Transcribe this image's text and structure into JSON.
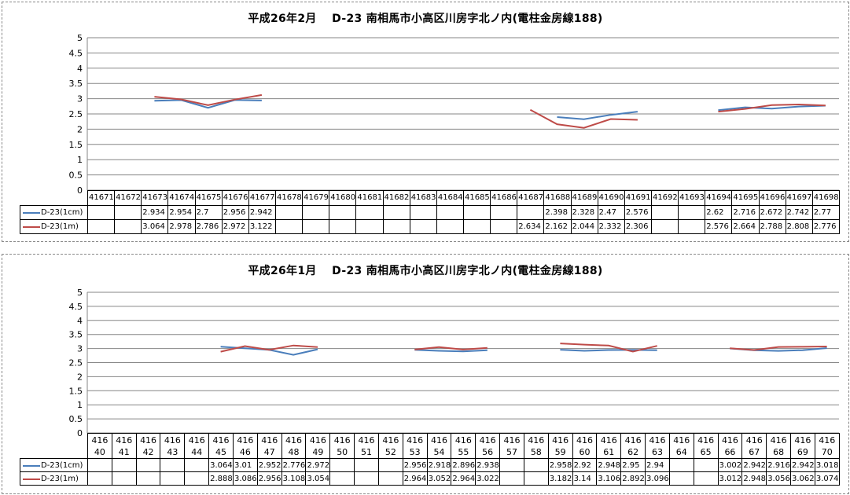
{
  "chart_data": [
    {
      "type": "line",
      "title": "平成26年2月　 D-23 南相馬市小高区川房字北ノ内(電柱金房線188)",
      "categories": [
        "41671",
        "41672",
        "41673",
        "41674",
        "41675",
        "41676",
        "41677",
        "41678",
        "41679",
        "41680",
        "41681",
        "41682",
        "41683",
        "41684",
        "41685",
        "41686",
        "41687",
        "41688",
        "41689",
        "41690",
        "41691",
        "41692",
        "41693",
        "41694",
        "41695",
        "41696",
        "41697",
        "41698"
      ],
      "ylim": [
        0,
        5
      ],
      "yticks": [
        "0",
        "0.5",
        "1",
        "1.5",
        "2",
        "2.5",
        "3",
        "3.5",
        "4",
        "4.5",
        "5"
      ],
      "grid": true,
      "legend": "data-table",
      "series": [
        {
          "name": "D-23(1cm)",
          "color": "#4a7ebb",
          "values": [
            null,
            null,
            2.934,
            2.954,
            2.7,
            2.956,
            2.942,
            null,
            null,
            null,
            null,
            null,
            null,
            null,
            null,
            null,
            null,
            2.398,
            2.328,
            2.47,
            2.576,
            null,
            null,
            2.62,
            2.716,
            2.672,
            2.742,
            2.77
          ],
          "labels": [
            "",
            "",
            "2.934",
            "2.954",
            "2.7",
            "2.956",
            "2.942",
            "",
            "",
            "",
            "",
            "",
            "",
            "",
            "",
            "",
            "",
            "2.398",
            "2.328",
            "2.47",
            "2.576",
            "",
            "",
            "2.62",
            "2.716",
            "2.672",
            "2.742",
            "2.77"
          ]
        },
        {
          "name": "D-23(1m)",
          "color": "#be4b48",
          "values": [
            null,
            null,
            3.064,
            2.978,
            2.786,
            2.972,
            3.122,
            null,
            null,
            null,
            null,
            null,
            null,
            null,
            null,
            null,
            2.634,
            2.162,
            2.044,
            2.332,
            2.306,
            null,
            null,
            2.576,
            2.664,
            2.788,
            2.808,
            2.776
          ],
          "labels": [
            "",
            "",
            "3.064",
            "2.978",
            "2.786",
            "2.972",
            "3.122",
            "",
            "",
            "",
            "",
            "",
            "",
            "",
            "",
            "",
            "2.634",
            "2.162",
            "2.044",
            "2.332",
            "2.306",
            "",
            "",
            "2.576",
            "2.664",
            "2.788",
            "2.808",
            "2.776"
          ]
        }
      ]
    },
    {
      "type": "line",
      "title": "平成26年1月　 D-23 南相馬市小高区川房字北ノ内(電柱金房線188)",
      "categories": [
        "41640",
        "41641",
        "41642",
        "41643",
        "41644",
        "41645",
        "41646",
        "41647",
        "41648",
        "41649",
        "41650",
        "41651",
        "41652",
        "41653",
        "41654",
        "41655",
        "41656",
        "41657",
        "41658",
        "41659",
        "41660",
        "41661",
        "41662",
        "41663",
        "41664",
        "41665",
        "41666",
        "41667",
        "41668",
        "41669",
        "41670"
      ],
      "ylim": [
        0,
        5
      ],
      "yticks": [
        "0",
        "0.5",
        "1",
        "1.5",
        "2",
        "2.5",
        "3",
        "3.5",
        "4",
        "4.5",
        "5"
      ],
      "grid": true,
      "legend": "data-table",
      "series": [
        {
          "name": "D-23(1cm)",
          "color": "#4a7ebb",
          "values": [
            null,
            null,
            null,
            null,
            null,
            3.064,
            3.01,
            2.952,
            2.776,
            2.972,
            null,
            null,
            null,
            2.956,
            2.918,
            2.896,
            2.938,
            null,
            null,
            2.958,
            2.92,
            2.948,
            2.95,
            2.94,
            null,
            null,
            3.002,
            2.942,
            2.916,
            2.942,
            3.018
          ],
          "labels": [
            "",
            "",
            "",
            "",
            "",
            "3.064",
            "3.01",
            "2.952",
            "2.776",
            "2.972",
            "",
            "",
            "",
            "2.956",
            "2.918",
            "2.896",
            "2.938",
            "",
            "",
            "2.958",
            "2.92",
            "2.948",
            "2.95",
            "2.94",
            "",
            "",
            "3.002",
            "2.942",
            "2.916",
            "2.942",
            "3.018"
          ]
        },
        {
          "name": "D-23(1m)",
          "color": "#be4b48",
          "values": [
            null,
            null,
            null,
            null,
            null,
            2.888,
            3.086,
            2.956,
            3.108,
            3.054,
            null,
            null,
            null,
            2.964,
            3.052,
            2.964,
            3.022,
            null,
            null,
            3.182,
            3.14,
            3.106,
            2.892,
            3.096,
            null,
            null,
            3.012,
            2.948,
            3.056,
            3.062,
            3.074
          ],
          "labels": [
            "",
            "",
            "",
            "",
            "",
            "2.888",
            "3.086",
            "2.956",
            "3.108",
            "3.054",
            "",
            "",
            "",
            "2.964",
            "3.052",
            "2.964",
            "3.022",
            "",
            "",
            "3.182",
            "3.14",
            "3.106",
            "2.892",
            "3.096",
            "",
            "",
            "3.012",
            "2.948",
            "3.056",
            "3.062",
            "3.074"
          ]
        }
      ]
    }
  ]
}
